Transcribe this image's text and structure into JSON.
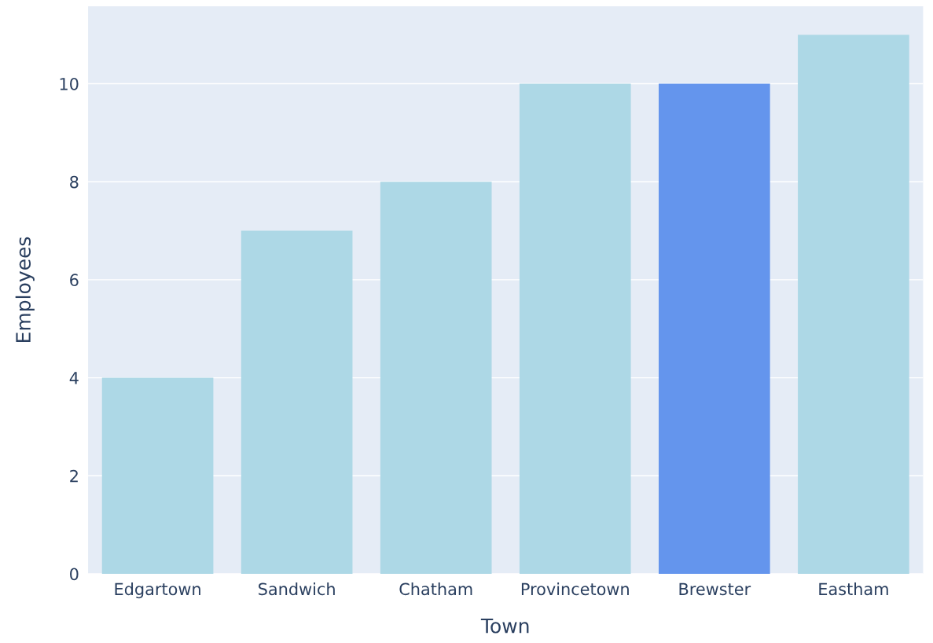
{
  "chart_data": {
    "type": "bar",
    "xlabel": "Town",
    "ylabel": "Employees",
    "categories": [
      "Edgartown",
      "Sandwich",
      "Chatham",
      "Provincetown",
      "Brewster",
      "Eastham"
    ],
    "values": [
      4,
      7,
      8,
      10,
      10,
      11
    ],
    "colors": [
      "#add8e6",
      "#add8e6",
      "#add8e6",
      "#add8e6",
      "#6495ed",
      "#add8e6"
    ],
    "ylim": [
      0,
      11.58
    ],
    "yticks": [
      0,
      2,
      4,
      6,
      8,
      10
    ],
    "grid": "y"
  }
}
